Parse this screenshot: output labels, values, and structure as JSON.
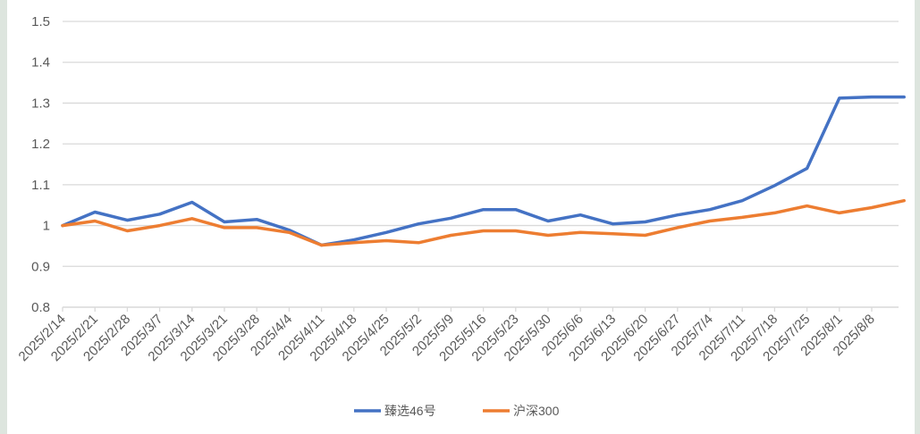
{
  "chart_data": {
    "type": "line",
    "title": "",
    "xlabel": "",
    "ylabel": "",
    "ylim": [
      0.8,
      1.5
    ],
    "yticks": [
      "0.8",
      "0.9",
      "1",
      "1.1",
      "1.2",
      "1.3",
      "1.4",
      "1.5"
    ],
    "grid": true,
    "legend_position": "bottom",
    "categories": [
      "2025/2/14",
      "2025/2/21",
      "2025/2/28",
      "2025/3/7",
      "2025/3/14",
      "2025/3/21",
      "2025/3/28",
      "2025/4/4",
      "2025/4/11",
      "2025/4/18",
      "2025/4/25",
      "2025/5/2",
      "2025/5/9",
      "2025/5/16",
      "2025/5/23",
      "2025/5/30",
      "2025/6/6",
      "2025/6/13",
      "2025/6/20",
      "2025/6/27",
      "2025/7/4",
      "2025/7/11",
      "2025/7/18",
      "2025/7/25",
      "2025/8/1",
      "2025/8/8",
      ""
    ],
    "series": [
      {
        "name": "臻选46号",
        "color": "#4472c4",
        "values": [
          1.0,
          1.033,
          1.013,
          1.028,
          1.057,
          1.009,
          1.015,
          0.989,
          0.952,
          0.965,
          0.983,
          1.004,
          1.018,
          1.039,
          1.039,
          1.011,
          1.026,
          1.004,
          1.009,
          1.026,
          1.039,
          1.061,
          1.098,
          1.14,
          1.312,
          1.315,
          1.315
        ]
      },
      {
        "name": "沪深300",
        "color": "#ed7d31",
        "values": [
          1.0,
          1.011,
          0.987,
          1.0,
          1.017,
          0.995,
          0.995,
          0.983,
          0.952,
          0.958,
          0.963,
          0.958,
          0.976,
          0.987,
          0.987,
          0.976,
          0.983,
          0.98,
          0.976,
          0.995,
          1.011,
          1.02,
          1.031,
          1.048,
          1.031,
          1.044,
          1.061
        ]
      }
    ]
  }
}
